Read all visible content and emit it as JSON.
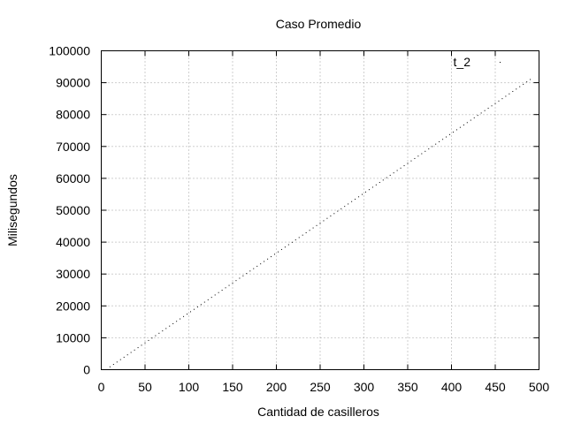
{
  "chart_data": {
    "type": "scatter",
    "title": "Caso Promedio",
    "xlabel": "Cantidad de casilleros",
    "ylabel": "Milisegundos",
    "xlim": [
      0,
      500
    ],
    "ylim": [
      0,
      100000
    ],
    "xticks": [
      "0",
      "50",
      "100",
      "150",
      "200",
      "250",
      "300",
      "350",
      "400",
      "450",
      "500"
    ],
    "yticks": [
      "0",
      "10000",
      "20000",
      "30000",
      "40000",
      "50000",
      "60000",
      "70000",
      "80000",
      "90000",
      "100000"
    ],
    "grid": true,
    "legend_position": "top-right",
    "series": [
      {
        "name": "t_2",
        "color": "#000000",
        "marker": "dot",
        "x_start": 10,
        "x_end": 490,
        "x_step": 4,
        "y_at_start": 900,
        "y_at_end": 91000
      }
    ]
  }
}
